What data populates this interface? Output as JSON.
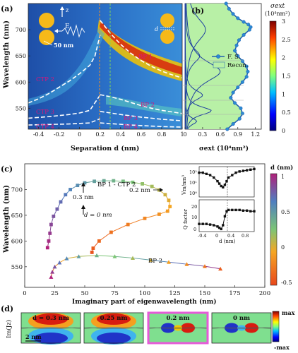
{
  "panel_a": {
    "label": "(a)",
    "ylabel": "Wavelength (nm)",
    "xlabel": "Separation d (nm)",
    "yticks": [
      "700",
      "650",
      "600",
      "550"
    ],
    "xticks": [
      "-0.4",
      "-0.2",
      "0",
      "0.2",
      "0.4",
      "0.6",
      "0.8",
      "1"
    ],
    "inset_E": "E",
    "inset_z": "z",
    "inset_size": "50 nm",
    "inset_d": "d",
    "modes": [
      "BP 1",
      "CTP 2",
      "BP 2",
      "CTP 3",
      "BP 3",
      "CTP 4",
      "BP 4"
    ]
  },
  "panel_b": {
    "label": "(b)",
    "xlabel": "σext (10⁴nm²)",
    "xticks": [
      "0",
      "0.3",
      "0.6",
      "0.9",
      "1.2"
    ],
    "legend_fs": "F. S.",
    "legend_recon": "Recon.",
    "colorbar_title": "σext",
    "colorbar_unit": "(10⁴nm²)",
    "colorbar_ticks": [
      "3",
      "2.5",
      "2",
      "1.5",
      "1",
      "0.5",
      "0"
    ]
  },
  "panel_c": {
    "label": "(c)",
    "ylabel": "Wavelength (nm)",
    "xlabel": "Imaginary part of eigenwavelength (nm)",
    "yticks": [
      "700",
      "650",
      "600",
      "550"
    ],
    "xticks": [
      "0",
      "25",
      "50",
      "75",
      "100",
      "125",
      "150",
      "175",
      "200"
    ],
    "ann_bp1": "BP 1 - CTP 2",
    "ann_02": "0.2 nm",
    "ann_03": "0.3 nm",
    "ann_d0": "d = 0 nm",
    "ann_bp2": "BP 2",
    "inset_top_ylabel": "Vm/nm³",
    "inset_top_yticks": [
      "10²",
      "10¹",
      "10⁰"
    ],
    "inset_bot_ylabel": "Q factor",
    "inset_bot_yticks": [
      "20",
      "10",
      "0"
    ],
    "inset_xticks": [
      "-0.4",
      "0",
      "0.4",
      "0.8"
    ],
    "inset_xlabel": "d (nm)",
    "colorbar_title": "d (nm)",
    "colorbar_ticks": [
      "1",
      "0.5",
      "0",
      "-0.5"
    ]
  },
  "panel_d": {
    "label": "(d)",
    "ylabel": "Im(Jz)",
    "titles": [
      "d = 0.3 nm",
      "0.25 nm",
      "0.2 nm",
      "0 nm"
    ],
    "scale": "2 nm",
    "cb_max": "max",
    "cb_min": "-max"
  },
  "chart_data": [
    {
      "type": "heatmap",
      "title": "",
      "xlabel": "Separation d (nm)",
      "ylabel": "Wavelength (nm)",
      "xlim": [
        -0.5,
        1.0
      ],
      "ylim": [
        510,
        750
      ],
      "series": [
        {
          "name": "BP 1",
          "x": [
            0.2,
            0.3,
            0.4,
            0.5,
            0.6,
            0.7,
            0.8,
            0.9,
            1.0
          ],
          "y": [
            718,
            693,
            672,
            655,
            641,
            630,
            621,
            614,
            608
          ]
        },
        {
          "name": "CTP 2",
          "x": [
            -0.5,
            -0.4,
            -0.3,
            -0.2,
            -0.1,
            0.0,
            0.1,
            0.15,
            0.2
          ],
          "y": [
            560,
            568,
            578,
            590,
            602,
            616,
            632,
            650,
            690
          ]
        },
        {
          "name": "BP 2",
          "x": [
            0.2,
            0.3,
            0.4,
            0.5,
            0.6,
            0.7,
            0.8,
            0.9,
            1.0
          ],
          "y": [
            576,
            572,
            567,
            561,
            555,
            550,
            546,
            543,
            540
          ]
        },
        {
          "name": "CTP 3",
          "x": [
            -0.5,
            -0.3,
            -0.1,
            0.0,
            0.1,
            0.2
          ],
          "y": [
            531,
            534,
            538,
            541,
            546,
            575
          ]
        },
        {
          "name": "BP 3",
          "x": [
            0.2,
            0.4,
            0.6,
            0.8,
            1.0
          ],
          "y": [
            544,
            538,
            533,
            529,
            526
          ]
        },
        {
          "name": "CTP 4",
          "x": [
            -0.5,
            -0.3,
            -0.1,
            0.1,
            0.2
          ],
          "y": [
            518,
            519,
            520,
            522,
            530
          ]
        },
        {
          "name": "BP 4",
          "x": [
            0.2,
            0.5,
            0.8,
            1.0
          ],
          "y": [
            522,
            518,
            515,
            514
          ]
        }
      ]
    },
    {
      "type": "line",
      "xlabel": "σext (10⁴nm²)",
      "ylabel": "Wavelength (nm)",
      "xlim": [
        0,
        1.3
      ],
      "series": [
        {
          "name": "F. S.",
          "x": [
            0.7,
            0.75,
            0.82,
            0.9,
            1.0,
            1.08,
            1.12,
            1.1,
            1.0,
            0.92,
            0.88,
            0.85,
            0.9,
            0.98,
            1.05,
            1.07,
            1.05,
            0.98,
            0.9,
            0.82,
            0.78,
            0.85,
            0.95,
            0.98,
            0.93,
            0.82,
            0.72
          ],
          "y": [
            750,
            740,
            730,
            722,
            715,
            710,
            705,
            700,
            690,
            680,
            670,
            660,
            650,
            640,
            630,
            620,
            610,
            600,
            590,
            580,
            570,
            560,
            550,
            540,
            530,
            520,
            510
          ]
        },
        {
          "name": "Recon.",
          "x": [
            0.7,
            0.75,
            0.82,
            0.9,
            1.0,
            1.08,
            1.12,
            1.1,
            1.0,
            0.92,
            0.88,
            0.85,
            0.9,
            0.98,
            1.05,
            1.07,
            1.05,
            0.98,
            0.9,
            0.82,
            0.78,
            0.85,
            0.95,
            0.98,
            0.93,
            0.82,
            0.72
          ],
          "y": [
            750,
            740,
            730,
            722,
            715,
            710,
            705,
            700,
            690,
            680,
            670,
            660,
            650,
            640,
            630,
            620,
            610,
            600,
            590,
            580,
            570,
            560,
            550,
            540,
            530,
            520,
            510
          ]
        }
      ]
    },
    {
      "type": "scatter",
      "xlabel": "Imaginary part of eigenwavelength (nm)",
      "ylabel": "Wavelength (nm)",
      "xlim": [
        0,
        200
      ],
      "ylim": [
        510,
        750
      ],
      "series": [
        {
          "name": "BP 1 - CTP 2",
          "x": [
            19,
            20,
            21,
            22,
            24,
            27,
            30,
            34,
            38,
            44,
            50,
            58,
            66,
            74,
            82,
            90,
            98,
            106,
            112,
            117,
            120,
            121,
            119,
            112,
            100,
            86,
            72,
            62,
            57,
            56
          ],
          "y": [
            587,
            600,
            615,
            632,
            648,
            662,
            676,
            690,
            700,
            708,
            713,
            716,
            717,
            717,
            716,
            714,
            711,
            706,
            699,
            690,
            679,
            667,
            658,
            652,
            644,
            632,
            617,
            600,
            586,
            578
          ]
        },
        {
          "name": "BP 2",
          "x": [
            22,
            23,
            25,
            29,
            35,
            45,
            60,
            75,
            90,
            105,
            120,
            135,
            150,
            163
          ],
          "y": [
            530,
            540,
            550,
            558,
            566,
            570,
            572,
            570,
            567,
            563,
            559,
            555,
            551,
            546
          ]
        }
      ]
    }
  ]
}
